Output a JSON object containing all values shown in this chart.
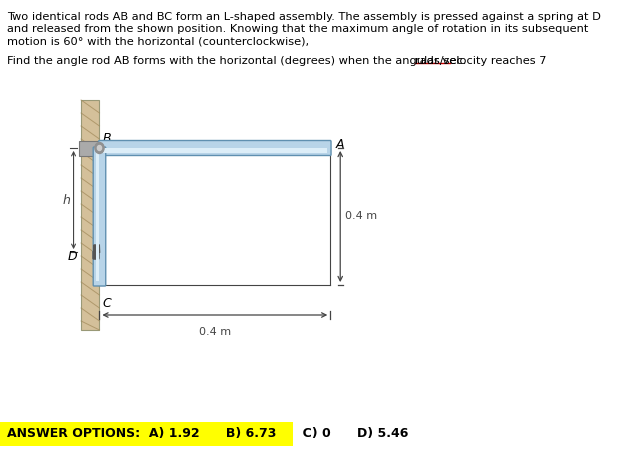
{
  "title_line1": "Two identical rods AB and BC form an L-shaped assembly. The assembly is pressed against a spring at D",
  "title_line2": "and released from the shown position. Knowing that the maximum angle of rotation in its subsequent",
  "title_line3": "motion is 60° with the horizontal (counterclockwise),",
  "question_part1": "Find the angle rod AB forms with the horizontal (degrees) when the angular velocity reaches 7 ",
  "question_part2": "rads/sec.",
  "answer_label": "ANSWER OPTIONS:  A) 1.92      B) 6.73      C) 0      D) 5.46",
  "label_B": "B",
  "label_A": "A",
  "label_C": "C",
  "label_D": "D",
  "label_h": "h",
  "dim_04m_horiz": "0.4 m",
  "dim_04m_vert": "0.4 m",
  "bg_color": "#ffffff",
  "wall_color": "#d4c09a",
  "wall_dark": "#b09060",
  "rod_color_light": "#b8d4e8",
  "rod_color_mid": "#8ab8d8",
  "rod_color_dark": "#6090b0",
  "rod_color_hi": "#ddeef8",
  "pin_color": "#909090",
  "pin_inner": "#cccccc",
  "spring_color": "#555555",
  "dim_line_color": "#444444",
  "answer_bg": "#ffff00",
  "text_color": "#000000",
  "underline_color": "#cc0000"
}
